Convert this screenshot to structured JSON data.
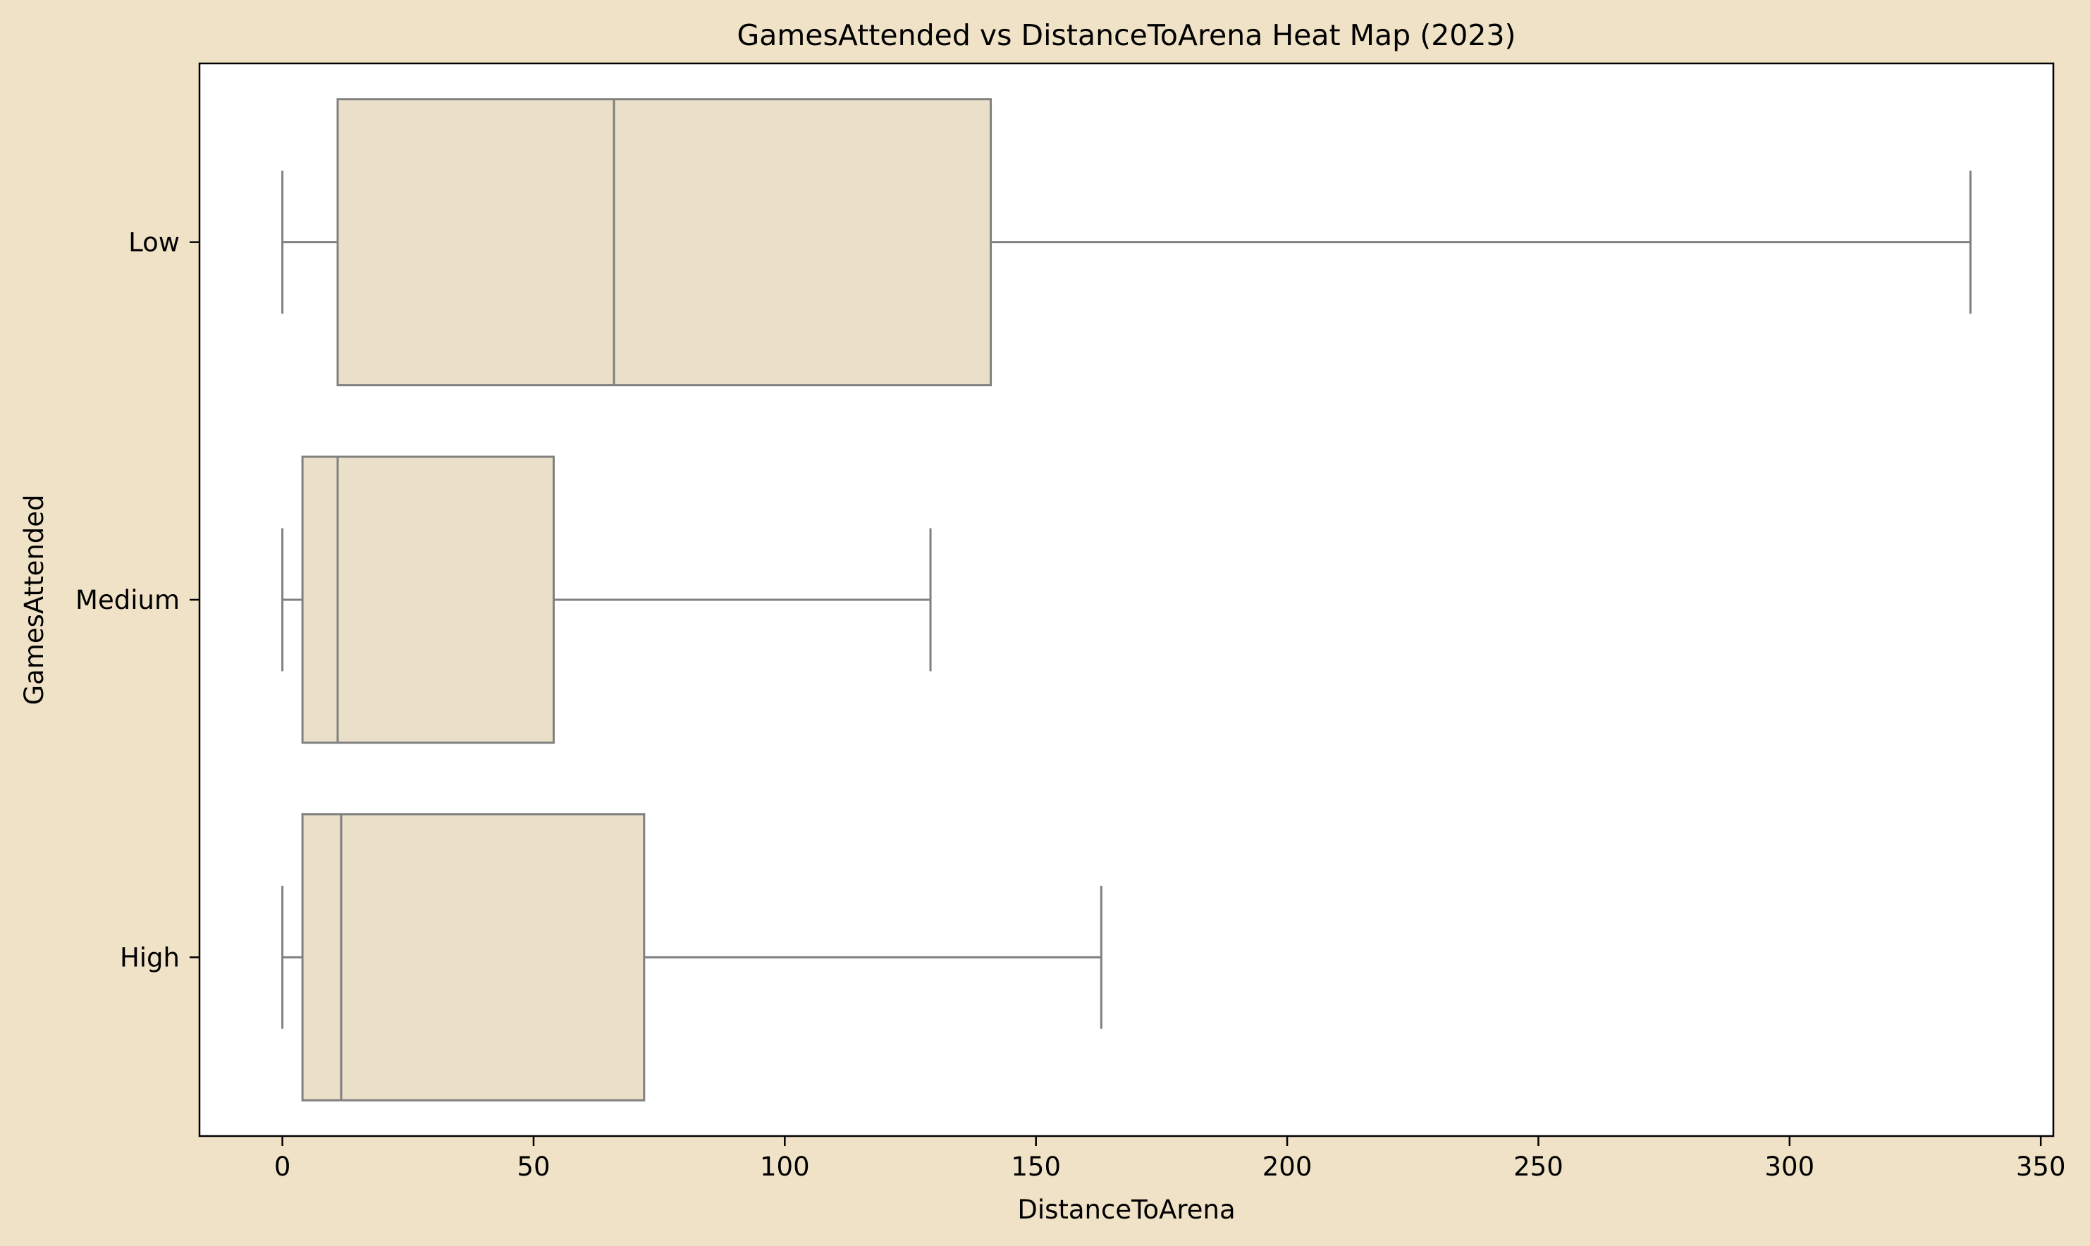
{
  "chart_data": {
    "type": "box",
    "orientation": "horizontal",
    "title": "GamesAttended vs DistanceToArena Heat Map (2023)",
    "xlabel": "DistanceToArena",
    "ylabel": "GamesAttended",
    "xlim": [
      -16.5,
      352.5
    ],
    "xticks": [
      0,
      50,
      100,
      150,
      200,
      250,
      300,
      350
    ],
    "categories": [
      "Low",
      "Medium",
      "High"
    ],
    "boxes": [
      {
        "category": "Low",
        "whisker_low": 0,
        "q1": 11,
        "median": 66,
        "q3": 141,
        "whisker_high": 336
      },
      {
        "category": "Medium",
        "whisker_low": 0,
        "q1": 4,
        "median": 11,
        "q3": 54,
        "whisker_high": 129
      },
      {
        "category": "High",
        "whisker_low": 0,
        "q1": 4,
        "median": 11.7,
        "q3": 72,
        "whisker_high": 163
      }
    ],
    "grid": false,
    "colors": {
      "background": "#f0e2c6",
      "plot_background": "#ffffff",
      "box_fill": "#eadfc8",
      "box_edge": "#808080",
      "axis": "#000000"
    }
  }
}
